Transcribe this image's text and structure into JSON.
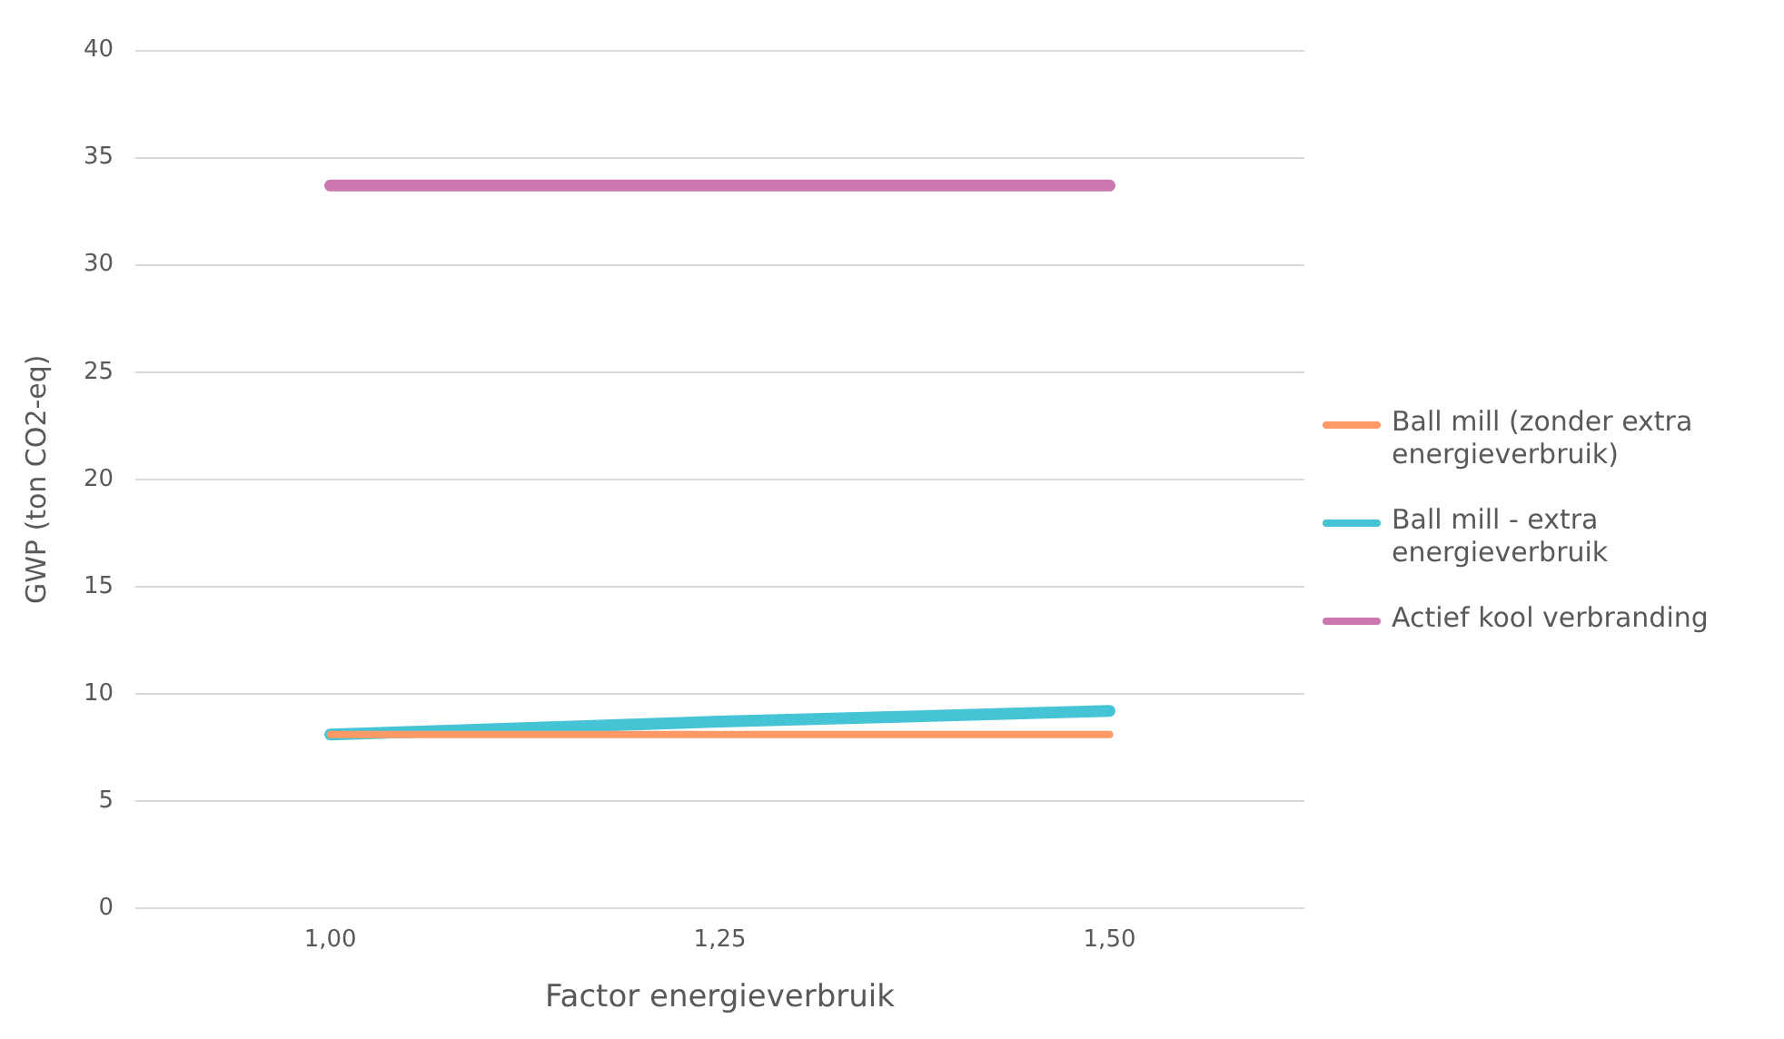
{
  "chart_data": {
    "type": "line",
    "xlabel": "Factor energieverbruik",
    "ylabel": "GWP (ton CO2-eq)",
    "categories": [
      "1,00",
      "1,25",
      "1,50"
    ],
    "ylim": [
      0,
      40
    ],
    "yticks": [
      0,
      5,
      10,
      15,
      20,
      25,
      30,
      35,
      40
    ],
    "grid": "y",
    "legend": "right",
    "marker": "none",
    "line_style": "solid",
    "series": [
      {
        "name": "Ball mill (zonder extra energieverbruik)",
        "color": "#ff9966",
        "values": [
          8.1,
          8.1,
          8.1
        ]
      },
      {
        "name": "Ball mill - extra energieverbruik",
        "color": "#44c4d4",
        "values": [
          8.1,
          8.7,
          9.2
        ]
      },
      {
        "name": "Actief kool verbranding",
        "color": "#cc77b0",
        "values": [
          33.7,
          33.7,
          33.7
        ]
      }
    ]
  }
}
